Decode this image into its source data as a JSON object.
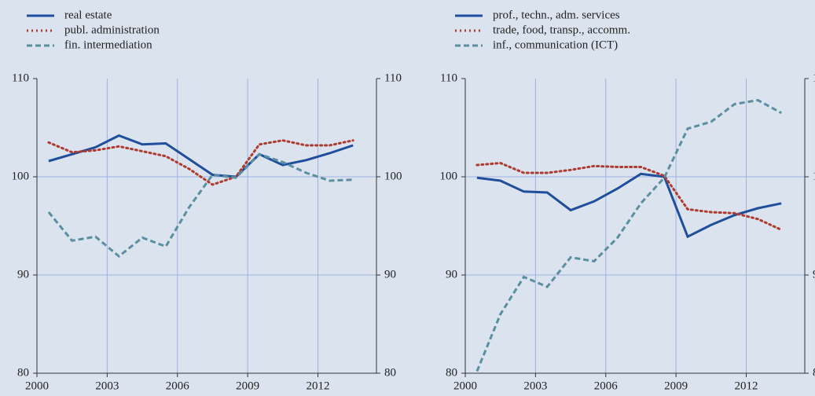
{
  "chart_data": [
    {
      "type": "line",
      "x": [
        2000.5,
        2001.5,
        2002.5,
        2003.5,
        2004.5,
        2005.5,
        2006.5,
        2007.5,
        2008.5,
        2009.5,
        2010.5,
        2011.5,
        2012.5,
        2013.5
      ],
      "series": [
        {
          "name": "real estate",
          "color": "#1f4e9c",
          "style": "solid",
          "values": [
            101.6,
            102.3,
            103.0,
            104.2,
            103.3,
            103.4,
            101.8,
            100.2,
            100.0,
            102.3,
            101.2,
            101.7,
            102.4,
            103.2
          ]
        },
        {
          "name": "publ. administration",
          "color": "#b03a2e",
          "style": "dotted",
          "values": [
            103.5,
            102.5,
            102.7,
            103.1,
            102.6,
            102.1,
            100.8,
            99.2,
            100.0,
            103.3,
            103.7,
            103.2,
            103.2,
            103.7
          ]
        },
        {
          "name": "fin. intermediation",
          "color": "#5b8fa0",
          "style": "dashed",
          "values": [
            96.4,
            93.5,
            93.9,
            91.9,
            93.8,
            92.9,
            96.9,
            100.2,
            99.9,
            102.3,
            101.5,
            100.4,
            99.6,
            99.7
          ]
        }
      ],
      "xlim": [
        2000,
        2014.5
      ],
      "xticks": [
        2000,
        2003,
        2006,
        2009,
        2012
      ],
      "ylim": [
        80,
        110
      ],
      "yticks": [
        80,
        90,
        100,
        110
      ],
      "grid": true,
      "legend": "top-left"
    },
    {
      "type": "line",
      "x": [
        2000.5,
        2001.5,
        2002.5,
        2003.5,
        2004.5,
        2005.5,
        2006.5,
        2007.5,
        2008.5,
        2009.5,
        2010.5,
        2011.5,
        2012.5,
        2013.5
      ],
      "series": [
        {
          "name": "prof., techn., adm. services",
          "color": "#1f4e9c",
          "style": "solid",
          "values": [
            99.9,
            99.6,
            98.5,
            98.4,
            96.6,
            97.5,
            98.8,
            100.3,
            100.0,
            93.9,
            95.1,
            96.1,
            96.8,
            97.3
          ]
        },
        {
          "name": "trade, food, transp., accomm.",
          "color": "#b03a2e",
          "style": "dotted",
          "values": [
            101.2,
            101.4,
            100.4,
            100.4,
            100.7,
            101.1,
            101.0,
            101.0,
            100.1,
            96.7,
            96.4,
            96.3,
            95.7,
            94.6
          ]
        },
        {
          "name": "inf., communication (ICT)",
          "color": "#5b8fa0",
          "style": "dashed",
          "values": [
            80.2,
            86.0,
            89.8,
            88.8,
            91.8,
            91.4,
            93.8,
            97.3,
            99.9,
            104.9,
            105.6,
            107.4,
            107.8,
            106.5
          ]
        }
      ],
      "xlim": [
        2000,
        2014.5
      ],
      "xticks": [
        2000,
        2003,
        2006,
        2009,
        2012
      ],
      "ylim": [
        80,
        110
      ],
      "yticks": [
        80,
        90,
        100,
        110
      ],
      "grid": true,
      "legend": "top-left"
    }
  ]
}
